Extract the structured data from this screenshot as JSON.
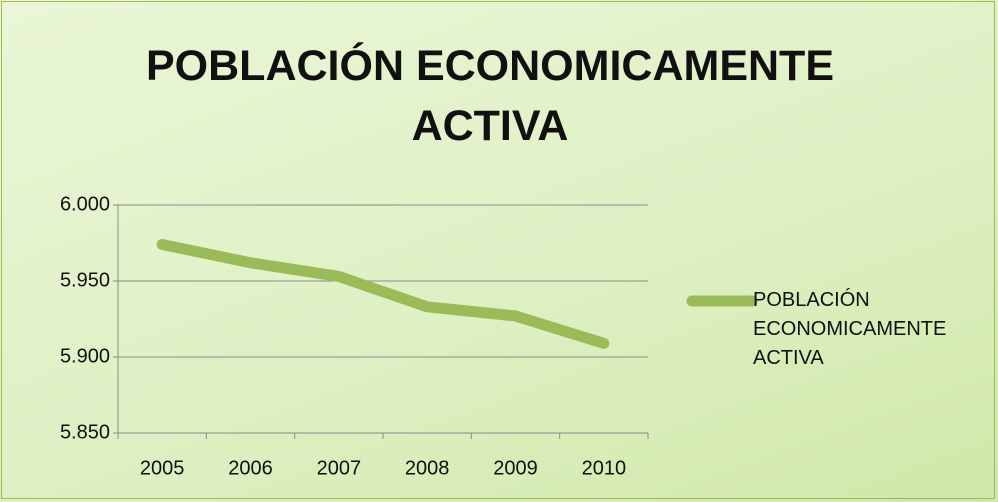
{
  "chart_data": {
    "type": "line",
    "title": "POBLACIÓN ECONOMICAMENTE ACTIVA",
    "categories": [
      "2005",
      "2006",
      "2007",
      "2008",
      "2009",
      "2010"
    ],
    "series": [
      {
        "name": "POBLACIÓN ECONOMICAMENTE ACTIVA",
        "color": "#9bbb59",
        "values": [
          5974,
          5962,
          5953,
          5933,
          5927,
          5909
        ]
      }
    ],
    "ylim": [
      5850,
      6000
    ],
    "yticks": [
      {
        "value": 5850,
        "label": "5.850"
      },
      {
        "value": 5900,
        "label": "5.900"
      },
      {
        "value": 5950,
        "label": "5.950"
      },
      {
        "value": 6000,
        "label": "6.000"
      }
    ],
    "grid": true,
    "legend": "right"
  }
}
